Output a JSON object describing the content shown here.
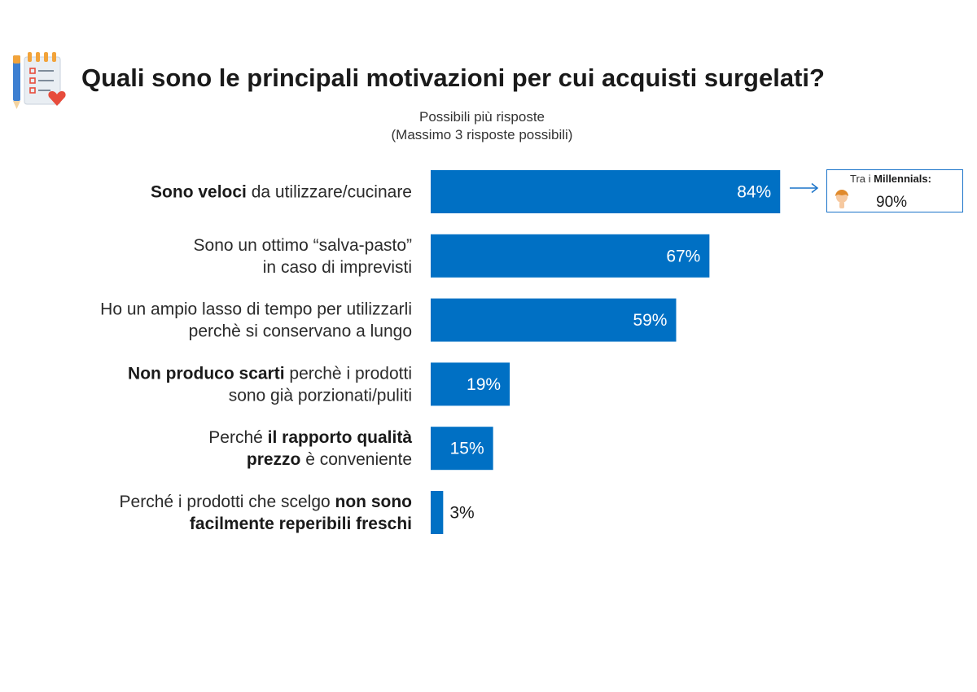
{
  "title": "Quali sono le principali motivazioni per cui acquisti surgelati?",
  "subtitle_line1": "Possibili più risposte",
  "subtitle_line2": "(Massimo 3 risposte possibili)",
  "icons": {
    "title": "checklist-pen-heart-icon",
    "callout": "millennial-person-icon",
    "pointer": "arrow-right-icon"
  },
  "colors": {
    "bar": "#0070c4",
    "callout_border": "#1a73c9",
    "text": "#2b2b2b"
  },
  "callout": {
    "caption_prefix": "Tra i ",
    "caption_bold": "Millennials:",
    "value": "90%"
  },
  "chart_data": {
    "type": "bar",
    "orientation": "horizontal",
    "categories": [
      [
        {
          "t": "Sono veloci",
          "b": true
        },
        {
          "t": " da utilizzare/cucinare",
          "b": false
        }
      ],
      [
        {
          "t": "Sono un ottimo “salva-pasto”",
          "b": false
        },
        {
          "t": "\n",
          "b": false
        },
        {
          "t": "in caso di imprevisti",
          "b": false
        }
      ],
      [
        {
          "t": "Ho un ampio lasso di tempo per utilizzarli",
          "b": false
        },
        {
          "t": "\n",
          "b": false
        },
        {
          "t": "perchè si conservano a lungo",
          "b": false
        }
      ],
      [
        {
          "t": "Non produco scarti",
          "b": true
        },
        {
          "t": " perchè i prodotti",
          "b": false
        },
        {
          "t": "\n",
          "b": false
        },
        {
          "t": "sono già porzionati/puliti",
          "b": false
        }
      ],
      [
        {
          "t": "Perché ",
          "b": false
        },
        {
          "t": "il rapporto qualità",
          "b": true
        },
        {
          "t": "\n",
          "b": false
        },
        {
          "t": "prezzo",
          "b": true
        },
        {
          "t": " è conveniente",
          "b": false
        }
      ],
      [
        {
          "t": "Perché i prodotti che scelgo ",
          "b": false
        },
        {
          "t": "non sono",
          "b": true
        },
        {
          "t": "\n",
          "b": false
        },
        {
          "t": "facilmente reperibili freschi",
          "b": true
        }
      ]
    ],
    "values": [
      84,
      67,
      59,
      19,
      15,
      3
    ],
    "value_labels": [
      "84%",
      "67%",
      "59%",
      "19%",
      "15%",
      "3%"
    ],
    "unit": "%",
    "xlim": [
      0,
      100
    ],
    "grid": false
  }
}
